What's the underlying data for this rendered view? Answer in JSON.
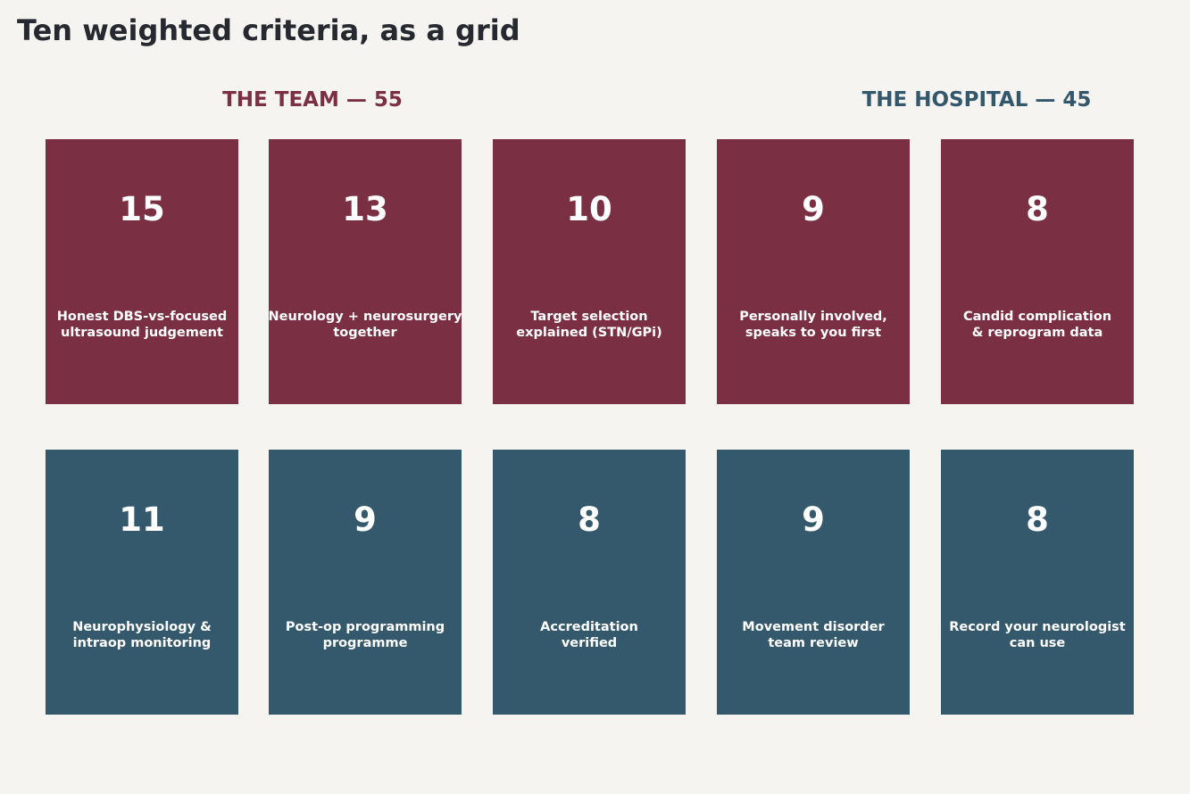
{
  "title": "Ten weighted criteria, as a grid",
  "groups": {
    "team": {
      "label": "THE TEAM — 55",
      "color": "#7a3042",
      "criteria": [
        {
          "weight": "15",
          "label": "Honest DBS-vs-focused\nultrasound judgement"
        },
        {
          "weight": "13",
          "label": "Neurology + neurosurgery\ntogether"
        },
        {
          "weight": "10",
          "label": "Target selection\nexplained (STN/GPi)"
        },
        {
          "weight": "9",
          "label": "Personally involved,\nspeaks to you first"
        },
        {
          "weight": "8",
          "label": "Candid complication\n& reprogram data"
        }
      ]
    },
    "hospital": {
      "label": "THE HOSPITAL — 45",
      "color": "#34586c",
      "criteria": [
        {
          "weight": "11",
          "label": "Neurophysiology &\nintraop monitoring"
        },
        {
          "weight": "9",
          "label": "Post-op programming\nprogramme"
        },
        {
          "weight": "8",
          "label": "Accreditation\nverified"
        },
        {
          "weight": "9",
          "label": "Movement disorder\nteam review"
        },
        {
          "weight": "8",
          "label": "Record your neurologist\ncan use"
        }
      ]
    }
  }
}
